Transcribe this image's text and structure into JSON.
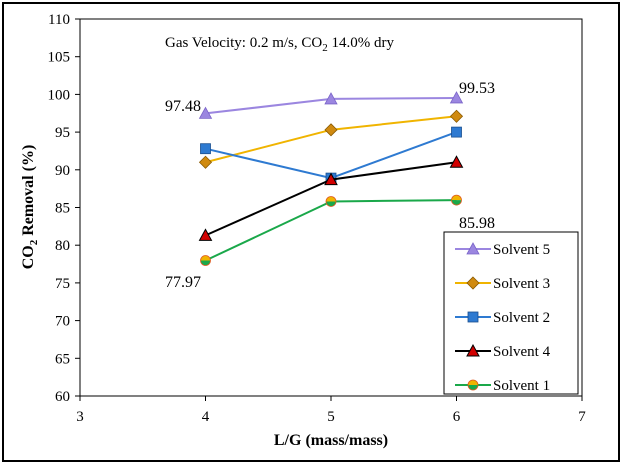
{
  "chart_data": {
    "type": "line",
    "title": "",
    "subtitle_prefix": "Gas Velocity:  0.2 m/s,  CO",
    "subtitle_sub": "2",
    "subtitle_suffix": " 14.0% dry",
    "xlabel": "L/G (mass/mass)",
    "ylabel_prefix": "CO",
    "ylabel_sub": "2",
    "ylabel_suffix": " Removal (%)",
    "xlim": [
      3,
      7
    ],
    "ylim": [
      60,
      110
    ],
    "xticks": [
      3,
      4,
      5,
      6,
      7
    ],
    "yticks": [
      60,
      65,
      70,
      75,
      80,
      85,
      90,
      95,
      100,
      105,
      110
    ],
    "x": [
      4,
      5,
      6
    ],
    "legend_position": "bottom-right",
    "series": [
      {
        "name": "Solvent 5",
        "values": [
          97.48,
          99.4,
          99.53
        ],
        "color": "#9b86e0",
        "marker": "triangle"
      },
      {
        "name": "Solvent 3",
        "values": [
          91.0,
          95.3,
          97.1
        ],
        "color": "#f0b400",
        "marker": "diamond"
      },
      {
        "name": "Solvent 2",
        "values": [
          92.8,
          88.9,
          95.0
        ],
        "color": "#2e7ad1",
        "marker": "square"
      },
      {
        "name": "Solvent 4",
        "values": [
          81.3,
          88.7,
          91.0
        ],
        "color": "#000000",
        "marker": "triangle-red"
      },
      {
        "name": "Solvent 1",
        "values": [
          77.97,
          85.8,
          85.98
        ],
        "color": "#1aa84a",
        "marker": "circle-split"
      }
    ],
    "annotations": [
      "97.48",
      "99.53",
      "77.97",
      "85.98"
    ]
  }
}
